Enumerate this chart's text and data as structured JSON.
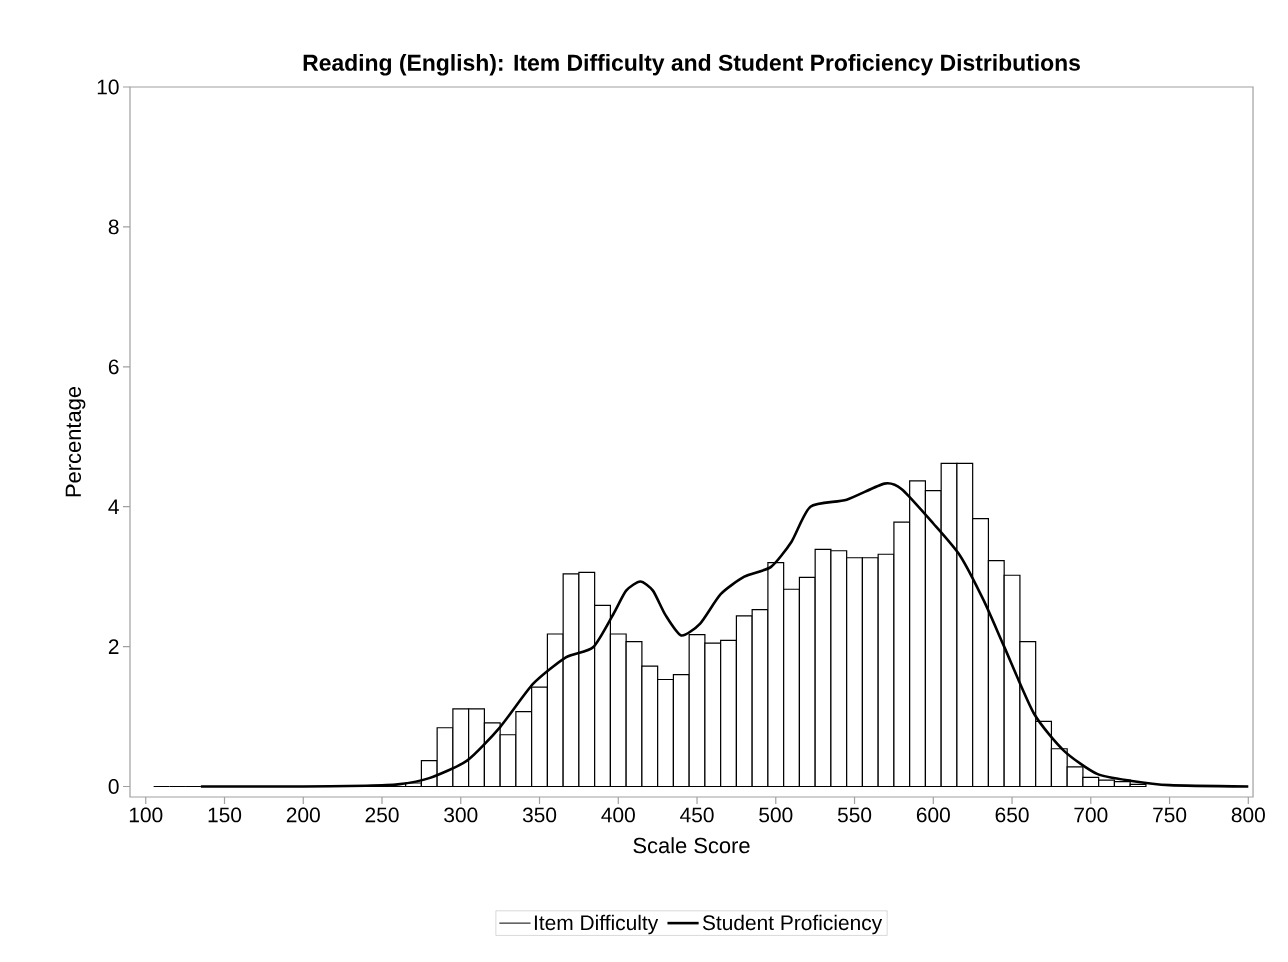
{
  "chart_data": {
    "type": "histogram",
    "title": "Reading (English): Item Difficulty and Student Proficiency Distributions",
    "xlabel": "Scale Score",
    "ylabel": "Percentage",
    "bins": [
      105,
      115,
      125,
      135,
      145,
      155,
      165,
      175,
      185,
      195,
      205,
      215,
      225,
      235,
      245,
      255,
      265,
      275,
      285,
      295,
      305,
      315,
      325,
      335,
      345,
      355,
      365,
      375,
      385,
      395,
      405,
      415,
      425,
      435,
      445,
      455,
      465,
      475,
      485,
      495,
      505,
      515,
      525,
      535,
      545,
      555,
      565,
      575,
      585,
      595,
      605,
      615,
      625,
      635,
      645,
      655,
      665,
      675,
      685,
      695,
      705,
      715,
      725,
      735
    ],
    "series": [
      {
        "name": "Item Difficulty",
        "color": "#000000",
        "values": [
          0,
          0,
          0,
          0,
          0,
          0,
          0,
          0,
          0,
          0,
          0,
          0,
          0,
          0,
          0,
          0,
          0.05,
          0.37,
          0.84,
          1.11,
          1.11,
          0.91,
          0.74,
          1.07,
          1.42,
          2.18,
          3.04,
          3.06,
          2.59,
          2.18,
          2.07,
          1.72,
          1.53,
          1.6,
          2.17,
          2.05,
          2.09,
          2.44,
          2.53,
          3.2,
          2.82,
          2.99,
          3.39,
          3.37,
          3.27,
          3.27,
          3.32,
          3.78,
          4.37,
          4.23,
          4.62,
          4.62,
          3.83,
          3.23,
          3.02,
          2.07,
          0.93,
          0.54,
          0.28,
          0.13,
          0.09,
          0.07,
          0.03
        ]
      },
      {
        "name": "Student Proficiency",
        "type": "line",
        "color": "#000000",
        "x": [
          135,
          200,
          240,
          260,
          280,
          304,
          325,
          346,
          367,
          384,
          397,
          405,
          414,
          422,
          430,
          440,
          452,
          465,
          480,
          497,
          510,
          522,
          545,
          569,
          580,
          600,
          617,
          632,
          645,
          664,
          683,
          704,
          726,
          750,
          800
        ],
        "values": [
          0,
          0,
          0.01,
          0.03,
          0.12,
          0.37,
          0.85,
          1.47,
          1.85,
          1.99,
          2.47,
          2.8,
          2.93,
          2.8,
          2.45,
          2.16,
          2.33,
          2.75,
          3.0,
          3.14,
          3.5,
          4.0,
          4.1,
          4.33,
          4.25,
          3.76,
          3.3,
          2.66,
          2.0,
          1.04,
          0.51,
          0.18,
          0.08,
          0.02,
          0
        ]
      }
    ],
    "xlim": [
      90,
      803
    ],
    "ylim": [
      -0.15,
      10
    ],
    "xticks": [
      100,
      150,
      200,
      250,
      300,
      350,
      400,
      450,
      500,
      550,
      600,
      650,
      700,
      750,
      800
    ],
    "yticks": [
      0,
      2,
      4,
      6,
      8,
      10
    ],
    "grid": false,
    "legend": "bottom"
  }
}
